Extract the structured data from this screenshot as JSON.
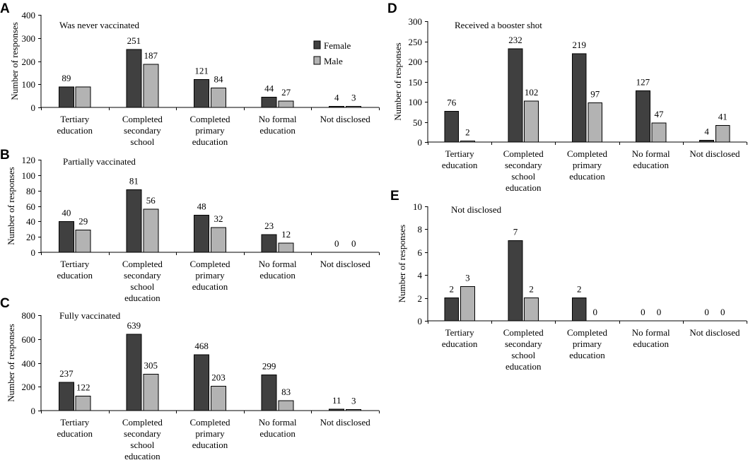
{
  "legend": {
    "female": "Female",
    "male": "Male"
  },
  "colors": {
    "female": "#404040",
    "male": "#b3b3b3"
  },
  "chart_data": [
    {
      "id": "A",
      "type": "bar",
      "title": "Was never vaccinated",
      "ylabel": "Number of responses",
      "ylim": [
        0,
        400
      ],
      "yticks": [
        0,
        100,
        200,
        300,
        400
      ],
      "categories": [
        [
          "Tertiary",
          "education"
        ],
        [
          "Completed",
          "secondary",
          "school"
        ],
        [
          "Completed",
          "primary",
          "education"
        ],
        [
          "No formal",
          "education"
        ],
        [
          "Not disclosed"
        ]
      ],
      "series": [
        {
          "name": "Female",
          "values": [
            89,
            251,
            121,
            44,
            4
          ]
        },
        {
          "name": "Male",
          "values": [
            89,
            187,
            84,
            27,
            3
          ]
        }
      ],
      "data_labels": [
        [
          "89",
          "251",
          "121",
          "44",
          "4"
        ],
        [
          "",
          "187",
          "84",
          "27",
          "3"
        ]
      ],
      "legend_position": "top-right"
    },
    {
      "id": "B",
      "type": "bar",
      "title": "Partially vaccinated",
      "ylabel": "Number of responses",
      "ylim": [
        0,
        120
      ],
      "yticks": [
        0,
        20,
        40,
        60,
        80,
        100,
        120
      ],
      "categories": [
        [
          "Tertiary",
          "education"
        ],
        [
          "Completed",
          "secondary",
          "school",
          "education"
        ],
        [
          "Completed",
          "primary",
          "education"
        ],
        [
          "No formal",
          "education"
        ],
        [
          "Not disclosed"
        ]
      ],
      "series": [
        {
          "name": "Female",
          "values": [
            40,
            81,
            48,
            23,
            0
          ]
        },
        {
          "name": "Male",
          "values": [
            29,
            56,
            32,
            12,
            0
          ]
        }
      ],
      "data_labels": [
        [
          "40",
          "81",
          "48",
          "23",
          "0"
        ],
        [
          "29",
          "56",
          "32",
          "12",
          "0"
        ]
      ]
    },
    {
      "id": "C",
      "type": "bar",
      "title": "Fully vaccinated",
      "ylabel": "Number of responses",
      "ylim": [
        0,
        800
      ],
      "yticks": [
        0,
        200,
        400,
        600,
        800
      ],
      "categories": [
        [
          "Tertiary",
          "education"
        ],
        [
          "Completed",
          "secondary",
          "school",
          "education"
        ],
        [
          "Completed",
          "primary",
          "education"
        ],
        [
          "No formal",
          "education"
        ],
        [
          "Not disclosed"
        ]
      ],
      "series": [
        {
          "name": "Female",
          "values": [
            237,
            639,
            468,
            299,
            11
          ]
        },
        {
          "name": "Male",
          "values": [
            122,
            305,
            203,
            83,
            3
          ]
        }
      ],
      "data_labels": [
        [
          "237",
          "639",
          "468",
          "299",
          "11"
        ],
        [
          "122",
          "305",
          "203",
          "83",
          "3"
        ]
      ]
    },
    {
      "id": "D",
      "type": "bar",
      "title": "Received a booster shot",
      "ylabel": "Number of responses",
      "ylim": [
        0,
        300
      ],
      "yticks": [
        0,
        50,
        100,
        150,
        200,
        250,
        300
      ],
      "categories": [
        [
          "Tertiary",
          "education"
        ],
        [
          "Completed",
          "secondary",
          "school",
          "education"
        ],
        [
          "Completed",
          "primary",
          "education"
        ],
        [
          "No formal",
          "education"
        ],
        [
          "Not disclosed"
        ]
      ],
      "series": [
        {
          "name": "Female",
          "values": [
            76,
            232,
            219,
            127,
            4
          ]
        },
        {
          "name": "Male",
          "values": [
            2,
            102,
            97,
            47,
            41
          ]
        }
      ],
      "data_labels": [
        [
          "76",
          "232",
          "219",
          "127",
          "4"
        ],
        [
          "2",
          "102",
          "97",
          "47",
          "41"
        ]
      ]
    },
    {
      "id": "E",
      "type": "bar",
      "title": "Not disclosed",
      "ylabel": "Number of responses",
      "ylim": [
        0,
        10
      ],
      "yticks": [
        0,
        2,
        4,
        6,
        8,
        10
      ],
      "categories": [
        [
          "Tertiary",
          "education"
        ],
        [
          "Completed",
          "secondary",
          "school",
          "education"
        ],
        [
          "Completed",
          "primary",
          "education"
        ],
        [
          "No formal",
          "education"
        ],
        [
          "Not disclosed"
        ]
      ],
      "series": [
        {
          "name": "Female",
          "values": [
            2,
            7,
            2,
            0,
            0
          ]
        },
        {
          "name": "Male",
          "values": [
            3,
            2,
            0,
            0,
            0
          ]
        }
      ],
      "data_labels": [
        [
          "2",
          "7",
          "2",
          "0",
          "0"
        ],
        [
          "3",
          "2",
          "0",
          "0",
          "0"
        ]
      ]
    }
  ]
}
